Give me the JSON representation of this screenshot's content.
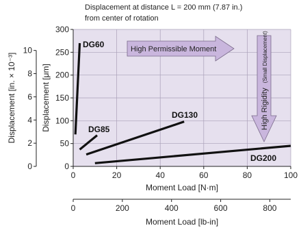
{
  "chart_data": {
    "type": "line",
    "title": {
      "line1": "Displacement at distance L = 200 mm (7.87 in.)",
      "line2": "from center of rotation"
    },
    "xlabel": "Moment Load [N·m]",
    "xlabel2": "Moment Load [lb-in]",
    "ylabel": "Displacement [μm]",
    "ylabel2": "Displacement [in. × 10⁻³]",
    "xlim": [
      0,
      100
    ],
    "ylim": [
      0,
      300
    ],
    "x_ticks": [
      0,
      20,
      40,
      60,
      80,
      100
    ],
    "y_ticks": [
      0,
      50,
      100,
      150,
      200,
      250,
      300
    ],
    "x2_ticks": [
      0,
      200,
      400,
      600,
      800
    ],
    "y2_ticks": [
      0,
      2,
      4,
      6,
      8,
      10
    ],
    "grid": true,
    "background": "#e6e0ee",
    "arrow_color": "#c9b6dd",
    "series": [
      {
        "name": "DG60",
        "x": [
          1,
          3
        ],
        "y": [
          70,
          270
        ]
      },
      {
        "name": "DG85",
        "x": [
          3,
          11
        ],
        "y": [
          37,
          68
        ]
      },
      {
        "name": "DG130",
        "x": [
          6,
          51
        ],
        "y": [
          26,
          98
        ]
      },
      {
        "name": "DG200",
        "x": [
          10,
          100
        ],
        "y": [
          7,
          45
        ]
      }
    ],
    "annotations": {
      "moment": "High Permissible Moment",
      "rigidity_main": "High Rigidity",
      "rigidity_sub": "(Small Displacement)"
    }
  }
}
